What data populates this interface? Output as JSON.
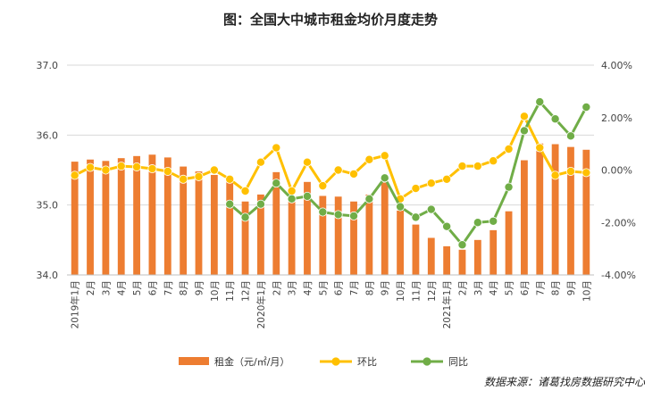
{
  "chart_data": {
    "type": "bar+line",
    "title": "图：全国大中城市租金均价月度走势",
    "source": "数据来源：诸葛找房数据研究中心",
    "categories": [
      "1月",
      "2月",
      "3月",
      "4月",
      "5月",
      "6月",
      "7月",
      "8月",
      "9月",
      "10月",
      "11月",
      "12月",
      "1月",
      "2月",
      "3月",
      "4月",
      "5月",
      "6月",
      "7月",
      "8月",
      "9月",
      "10月",
      "11月",
      "12月",
      "1月",
      "2月",
      "3月",
      "4月",
      "5月",
      "6月",
      "7月",
      "8月",
      "9月",
      "10月"
    ],
    "year_labels": [
      {
        "index": 0,
        "label": "2019年"
      },
      {
        "index": 12,
        "label": "2020年"
      },
      {
        "index": 24,
        "label": "2021年"
      }
    ],
    "left_axis": {
      "min": 34.0,
      "max": 37.0,
      "ticks": [
        "34.0",
        "35.0",
        "36.0",
        "37.0"
      ]
    },
    "right_axis": {
      "min": -4.0,
      "max": 4.0,
      "ticks": [
        "-4.00%",
        "-2.00%",
        "0.00%",
        "2.00%",
        "4.00%"
      ]
    },
    "series": [
      {
        "name": "租金（元/㎡/月）",
        "kind": "bar",
        "axis": "left",
        "color": "#ED7D31",
        "values": [
          35.62,
          35.65,
          35.63,
          35.67,
          35.7,
          35.72,
          35.68,
          35.55,
          35.48,
          35.43,
          35.35,
          35.05,
          35.15,
          35.47,
          35.12,
          35.33,
          35.13,
          35.12,
          35.05,
          35.15,
          35.32,
          34.92,
          34.72,
          34.53,
          34.41,
          34.36,
          34.5,
          34.64,
          34.91,
          35.64,
          35.88,
          35.87,
          35.83,
          35.79
        ]
      },
      {
        "name": "环比",
        "kind": "line",
        "axis": "right",
        "color": "#FFC000",
        "values": [
          -0.2,
          0.1,
          0.0,
          0.15,
          0.12,
          0.05,
          -0.05,
          -0.35,
          -0.25,
          0.0,
          -0.35,
          -0.8,
          0.3,
          0.85,
          -0.8,
          0.3,
          -0.6,
          0.0,
          -0.15,
          0.4,
          0.55,
          -1.1,
          -0.7,
          -0.5,
          -0.35,
          0.15,
          0.15,
          0.35,
          0.8,
          2.05,
          0.85,
          -0.2,
          -0.05,
          -0.1
        ]
      },
      {
        "name": "同比",
        "kind": "line",
        "axis": "right",
        "color": "#70AD47",
        "values": [
          null,
          null,
          null,
          null,
          null,
          null,
          null,
          null,
          null,
          null,
          -1.3,
          -1.8,
          -1.3,
          -0.5,
          -1.1,
          -1.0,
          -1.6,
          -1.7,
          -1.75,
          -1.1,
          -0.3,
          -1.4,
          -1.8,
          -1.5,
          -2.15,
          -2.85,
          -2.0,
          -1.95,
          -0.65,
          1.5,
          2.6,
          1.95,
          1.3,
          2.4
        ]
      }
    ],
    "legend_position": "bottom",
    "grid": "horizontal"
  }
}
